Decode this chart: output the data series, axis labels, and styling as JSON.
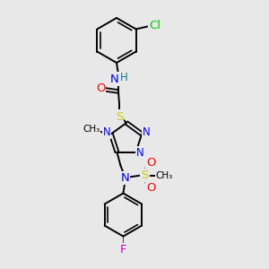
{
  "background_color": "#e8e8e8",
  "atom_colors": {
    "C": "#000000",
    "N": "#0000ff",
    "O": "#ff0000",
    "S": "#cccc00",
    "Cl": "#00cc00",
    "F": "#cc00cc",
    "H": "#008080"
  },
  "bond_color": "#000000",
  "figsize": [
    3.0,
    3.0
  ],
  "dpi": 100
}
